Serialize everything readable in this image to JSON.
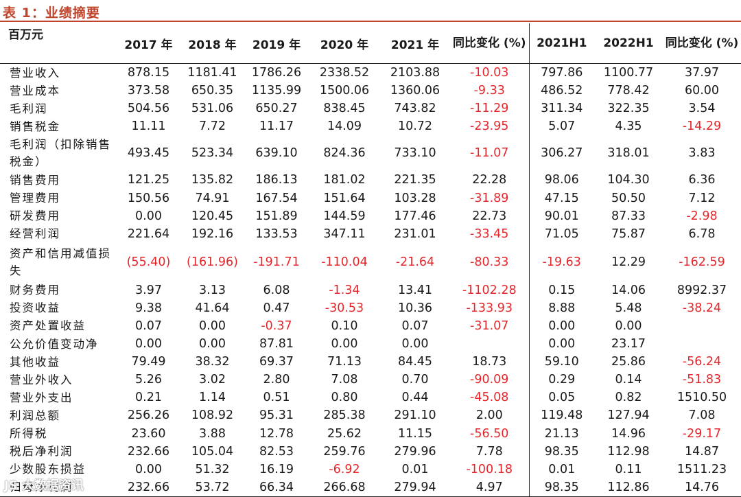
{
  "title": "表 1：业绩摘要",
  "header": {
    "label": "百万元",
    "columns": [
      "2017 年",
      "2018 年",
      "2019 年",
      "2020 年",
      "2021 年",
      "同比变化 (%)",
      "2021H1",
      "2022H1",
      "同比变化 (%)"
    ]
  },
  "colors": {
    "title": "#c0432b",
    "negative": "#e5262b"
  },
  "rows": [
    {
      "label": "营业收入",
      "values": [
        "878.15",
        "1181.41",
        "1786.26",
        "2338.52",
        "2103.88",
        "-10.03",
        "797.86",
        "1100.77",
        "37.97"
      ]
    },
    {
      "label": "营业成本",
      "values": [
        "373.58",
        "650.35",
        "1135.99",
        "1500.06",
        "1360.06",
        "-9.33",
        "486.52",
        "778.42",
        "60.00"
      ]
    },
    {
      "label": "毛利润",
      "values": [
        "504.56",
        "531.06",
        "650.27",
        "838.45",
        "743.82",
        "-11.29",
        "311.34",
        "322.35",
        "3.54"
      ]
    },
    {
      "label": "销售税金",
      "values": [
        "11.11",
        "7.72",
        "11.17",
        "14.09",
        "10.72",
        "-23.95",
        "5.07",
        "4.35",
        "-14.29"
      ]
    },
    {
      "label": "毛利润（扣除销售税金）",
      "values": [
        "493.45",
        "523.34",
        "639.10",
        "824.36",
        "733.10",
        "-11.07",
        "306.27",
        "318.01",
        "3.83"
      ]
    },
    {
      "label": "销售费用",
      "values": [
        "121.25",
        "135.82",
        "186.13",
        "181.02",
        "221.35",
        "22.28",
        "98.06",
        "104.30",
        "6.36"
      ]
    },
    {
      "label": "管理费用",
      "values": [
        "150.56",
        "74.91",
        "167.54",
        "151.64",
        "103.28",
        "-31.89",
        "47.15",
        "50.50",
        "7.12"
      ]
    },
    {
      "label": "研发费用",
      "values": [
        "0.00",
        "120.45",
        "151.89",
        "144.59",
        "177.46",
        "22.73",
        "90.01",
        "87.33",
        "-2.98"
      ]
    },
    {
      "label": "经营利润",
      "values": [
        "221.64",
        "192.16",
        "133.53",
        "347.11",
        "231.01",
        "-33.45",
        "71.05",
        "75.87",
        "6.78"
      ]
    },
    {
      "label": "资产和信用减值损失",
      "values": [
        "(55.40)",
        "(161.96)",
        "-191.71",
        "-110.04",
        "-21.64",
        "-80.33",
        "-19.63",
        "12.29",
        "-162.59"
      ]
    },
    {
      "label": "财务费用",
      "values": [
        "3.97",
        "3.13",
        "6.08",
        "-1.34",
        "13.41",
        "-1102.28",
        "0.15",
        "14.06",
        "8992.37"
      ]
    },
    {
      "label": "投资收益",
      "values": [
        "9.38",
        "41.64",
        "0.47",
        "-30.53",
        "10.36",
        "-133.93",
        "8.88",
        "5.48",
        "-38.24"
      ]
    },
    {
      "label": "资产处置收益",
      "values": [
        "0.07",
        "0.00",
        "-0.37",
        "0.10",
        "0.07",
        "-31.07",
        "0.00",
        "0.00",
        ""
      ]
    },
    {
      "label": "公允价值变动净",
      "values": [
        "0.00",
        "0.00",
        "87.81",
        "0.00",
        "0.00",
        "",
        "0.00",
        "23.17",
        ""
      ]
    },
    {
      "label": "其他收益",
      "values": [
        "79.49",
        "38.32",
        "69.37",
        "71.13",
        "84.45",
        "18.73",
        "59.10",
        "25.86",
        "-56.24"
      ]
    },
    {
      "label": "营业外收入",
      "values": [
        "5.26",
        "3.02",
        "2.80",
        "7.08",
        "0.70",
        "-90.09",
        "0.29",
        "0.14",
        "-51.83"
      ]
    },
    {
      "label": "营业外支出",
      "values": [
        "0.21",
        "1.14",
        "0.51",
        "0.80",
        "0.44",
        "-45.08",
        "0.05",
        "0.82",
        "1510.50"
      ]
    },
    {
      "label": "利润总额",
      "values": [
        "256.26",
        "108.92",
        "95.31",
        "285.38",
        "291.10",
        "2.00",
        "119.48",
        "127.94",
        "7.08"
      ]
    },
    {
      "label": "所得税",
      "values": [
        "23.60",
        "3.88",
        "12.78",
        "25.62",
        "11.15",
        "-56.50",
        "21.13",
        "14.96",
        "-29.17"
      ]
    },
    {
      "label": "税后净利润",
      "values": [
        "232.66",
        "105.04",
        "82.53",
        "259.76",
        "279.96",
        "7.78",
        "98.35",
        "112.98",
        "14.87"
      ]
    },
    {
      "label": "少数股东损益",
      "values": [
        "0.00",
        "51.32",
        "16.19",
        "-6.92",
        "0.01",
        "-100.18",
        "0.01",
        "0.11",
        "1511.23"
      ]
    },
    {
      "label": "归母净利润",
      "values": [
        "232.66",
        "53.72",
        "66.34",
        "266.68",
        "279.94",
        "4.97",
        "98.35",
        "112.86",
        "14.76"
      ]
    }
  ],
  "watermark": "JS 大数据资讯"
}
